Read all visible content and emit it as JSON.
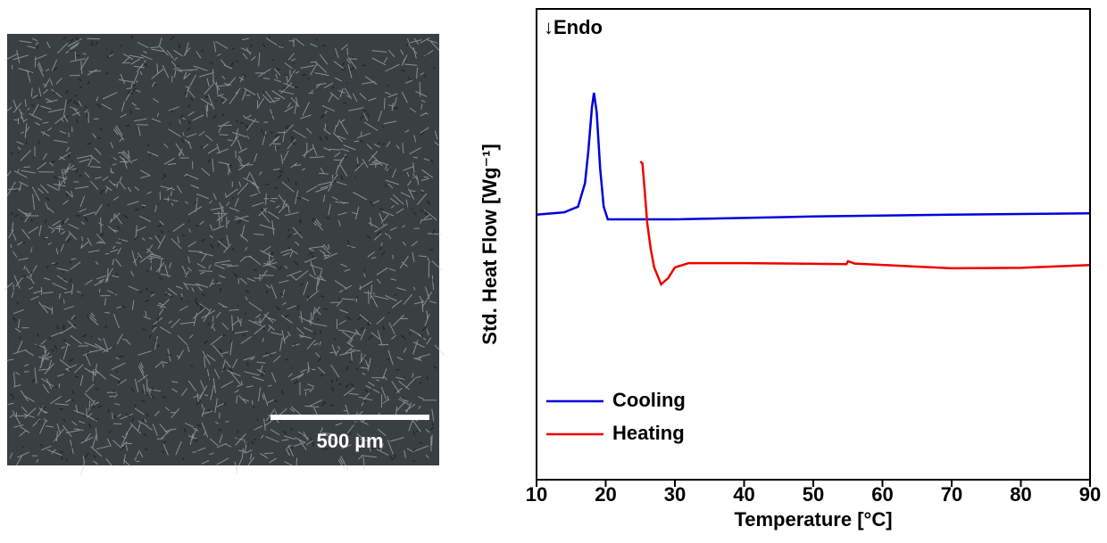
{
  "micrograph": {
    "scale_label": "500 µm"
  },
  "chart_data": {
    "type": "line",
    "annotation": "↓Endo",
    "xlabel": "Temperature [°C]",
    "ylabel": "Std. Heat Flow [Wg⁻¹]",
    "xlim": [
      10,
      90
    ],
    "xticks": [
      10,
      20,
      30,
      40,
      50,
      60,
      70,
      80,
      90
    ],
    "ylim": [
      0,
      100
    ],
    "legend": "lower left",
    "series": [
      {
        "name": "Cooling",
        "color": "#0000dd",
        "x": [
          10,
          14,
          16,
          17,
          17.5,
          18,
          18.3,
          18.7,
          19.2,
          19.7,
          20.3,
          30,
          50,
          70,
          90
        ],
        "values": [
          56.3,
          56.8,
          58,
          63,
          70,
          79,
          82.2,
          78,
          66,
          58,
          55.3,
          55.3,
          55.9,
          56.3,
          56.6
        ]
      },
      {
        "name": "Heating",
        "color": "#ee0000",
        "x": [
          25,
          25.3,
          25.6,
          26,
          26.5,
          27,
          28,
          29,
          30,
          32,
          40,
          54.8,
          55,
          56,
          70,
          80,
          90
        ],
        "values": [
          67.6,
          67.2,
          62,
          54.5,
          49,
          45.1,
          41.5,
          42.8,
          45.1,
          46.0,
          46.0,
          45.8,
          46.4,
          45.9,
          44.9,
          45.0,
          45.6
        ]
      }
    ]
  }
}
